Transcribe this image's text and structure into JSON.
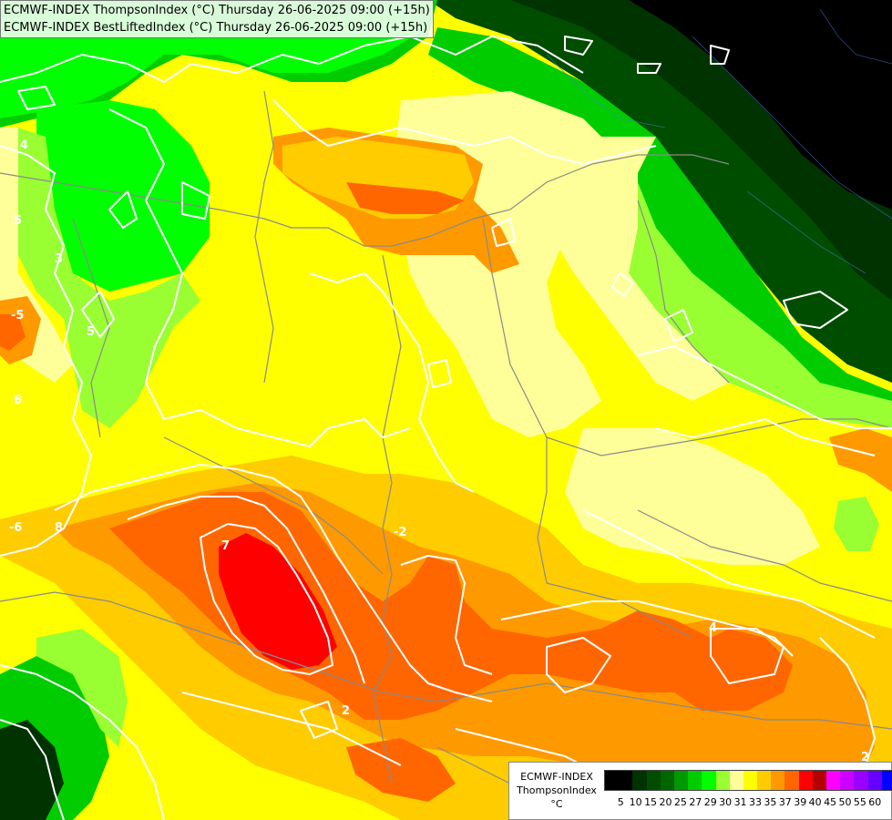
{
  "header": {
    "line1": "ECMWF-INDEX ThompsonIndex (°C) Thursday 26-06-2025 09:00 (+15h)",
    "line2": "ECMWF-INDEX BestLiftedIndex (°C) Thursday 26-06-2025 09:00 (+15h)"
  },
  "legend": {
    "line1": "ECMWF-INDEX",
    "line2": "ThompsonIndex",
    "line3": "°C",
    "ticks": [
      "5",
      "10",
      "15",
      "20",
      "25",
      "27",
      "29",
      "30",
      "31",
      "33",
      "35",
      "37",
      "39",
      "40",
      "45",
      "50",
      "55",
      "60"
    ],
    "colors": [
      "#000000",
      "#000000",
      "#003300",
      "#004d00",
      "#006600",
      "#009900",
      "#00cc00",
      "#00ff00",
      "#99ff33",
      "#ffff99",
      "#ffff00",
      "#ffcc00",
      "#ff9900",
      "#ff6600",
      "#ff0000",
      "#b30000",
      "#ff00ff",
      "#cc00ff",
      "#9900ff",
      "#6600ff",
      "#0000ff"
    ]
  },
  "contour_labels": [
    "4",
    "5",
    "3",
    "5",
    "-5",
    "6",
    "-6",
    "8",
    "7",
    "-2",
    "2",
    "2",
    "4"
  ]
}
